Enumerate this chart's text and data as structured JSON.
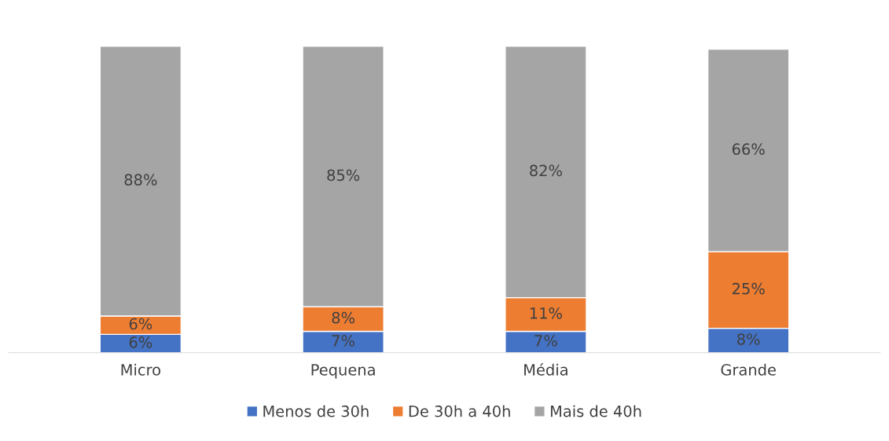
{
  "chart_data": {
    "type": "bar",
    "stacked": true,
    "categories": [
      "Micro",
      "Pequena",
      "Média",
      "Grande"
    ],
    "series": [
      {
        "name": "Menos de 30h",
        "color": "#4472c4",
        "values": [
          6,
          7,
          7,
          8
        ],
        "value_labels": [
          "6%",
          "7%",
          "7%",
          "8%"
        ]
      },
      {
        "name": "De 30h a 40h",
        "color": "#ed7d31",
        "values": [
          6,
          8,
          11,
          25
        ],
        "value_labels": [
          "6%",
          "8%",
          "11%",
          "25%"
        ]
      },
      {
        "name": "Mais de 40h",
        "color": "#a5a5a5",
        "values": [
          88,
          85,
          82,
          66
        ],
        "value_labels": [
          "88%",
          "85%",
          "82%",
          "66%"
        ]
      }
    ],
    "legend": "bottom",
    "grid": false
  }
}
